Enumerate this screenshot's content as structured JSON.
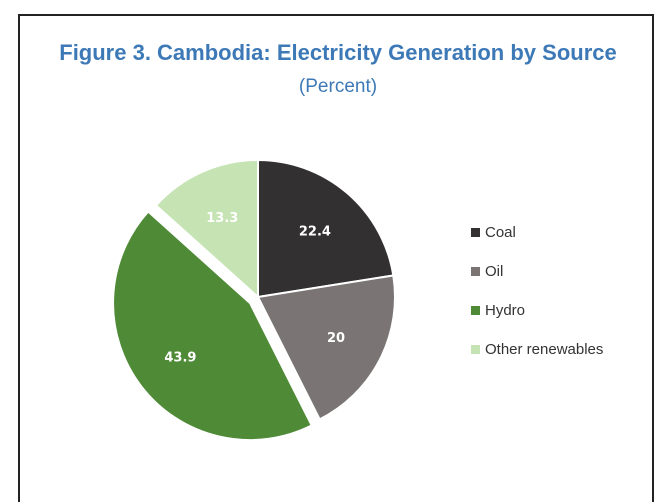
{
  "figure": {
    "title": "Figure 3. Cambodia: Electricity Generation by Source",
    "subtitle": "(Percent)"
  },
  "chart_data": {
    "type": "pie",
    "title": "Figure 3. Cambodia: Electricity Generation by Source",
    "subtitle": "(Percent)",
    "categories": [
      "Coal",
      "Oil",
      "Hydro",
      "Other renewables"
    ],
    "values": [
      22.4,
      20,
      43.9,
      13.3
    ],
    "data_labels": [
      "22.4",
      "20",
      "43.9",
      "13.3"
    ],
    "colors": [
      "#323031",
      "#7a7474",
      "#4f8a37",
      "#c6e3b3"
    ],
    "exploded": [
      false,
      false,
      true,
      false
    ],
    "legend": {
      "entries": [
        "Coal",
        "Oil",
        "Hydro",
        "Other renewables"
      ],
      "placement": "right"
    }
  }
}
